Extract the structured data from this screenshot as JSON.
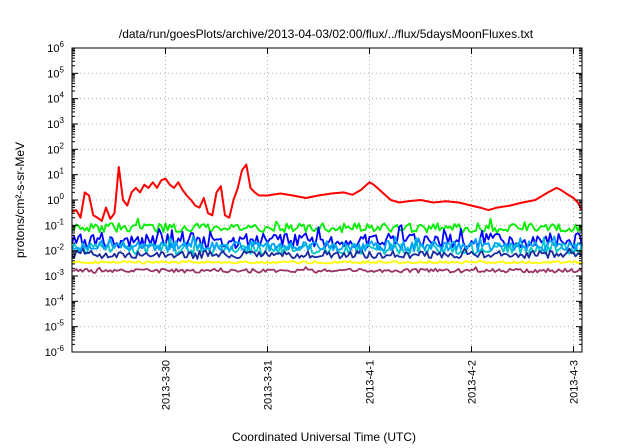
{
  "chart_data": {
    "type": "line",
    "title": "/data/run/goesPlots/archive/2013-04-03/02:00/flux/../flux/5daysMoonFluxes.txt",
    "xlabel": "Coordinated Universal Time (UTC)",
    "ylabel": "protons/cm²-s-sr-MeV",
    "y_scale": "log",
    "ylim": [
      1e-06,
      1000000.0
    ],
    "y_ticks": [
      {
        "value": 1e-06,
        "base": "10",
        "exp": "-6"
      },
      {
        "value": 1e-05,
        "base": "10",
        "exp": "-5"
      },
      {
        "value": 0.0001,
        "base": "10",
        "exp": "-4"
      },
      {
        "value": 0.001,
        "base": "10",
        "exp": "-3"
      },
      {
        "value": 0.01,
        "base": "10",
        "exp": "-2"
      },
      {
        "value": 0.1,
        "base": "10",
        "exp": "-1"
      },
      {
        "value": 1,
        "base": "10",
        "exp": "0"
      },
      {
        "value": 10,
        "base": "10",
        "exp": "1"
      },
      {
        "value": 100,
        "base": "10",
        "exp": "2"
      },
      {
        "value": 1000,
        "base": "10",
        "exp": "3"
      },
      {
        "value": 10000,
        "base": "10",
        "exp": "4"
      },
      {
        "value": 100000,
        "base": "10",
        "exp": "5"
      },
      {
        "value": 1000000,
        "base": "10",
        "exp": "6"
      }
    ],
    "xlim": [
      "2013-03-29 02:00",
      "2013-04-03 02:00"
    ],
    "x_ticks": [
      {
        "value": "2013-03-30 00:00",
        "label": "2013-3-30"
      },
      {
        "value": "2013-03-31 00:00",
        "label": "2013-3-31"
      },
      {
        "value": "2013-04-01 00:00",
        "label": "2013-4-1"
      },
      {
        "value": "2013-04-02 00:00",
        "label": "2013-4-2"
      },
      {
        "value": "2013-04-03 00:00",
        "label": "2013-4-3"
      }
    ],
    "grid": true,
    "legend": "none",
    "series": [
      {
        "color": "#ff0000",
        "points": [
          [
            "2013-03-29 02:00",
            0.35
          ],
          [
            "2013-03-29 03:00",
            0.4
          ],
          [
            "2013-03-29 04:00",
            0.2
          ],
          [
            "2013-03-29 05:00",
            2.0
          ],
          [
            "2013-03-29 06:00",
            1.5
          ],
          [
            "2013-03-29 07:00",
            0.25
          ],
          [
            "2013-03-29 08:00",
            0.2
          ],
          [
            "2013-03-29 09:00",
            0.15
          ],
          [
            "2013-03-29 10:00",
            0.5
          ],
          [
            "2013-03-29 11:00",
            0.18
          ],
          [
            "2013-03-29 12:00",
            0.3
          ],
          [
            "2013-03-29 13:00",
            20
          ],
          [
            "2013-03-29 14:00",
            1.0
          ],
          [
            "2013-03-29 15:00",
            0.6
          ],
          [
            "2013-03-29 16:00",
            2.0
          ],
          [
            "2013-03-29 17:00",
            3.0
          ],
          [
            "2013-03-29 18:00",
            2.0
          ],
          [
            "2013-03-29 19:00",
            4.0
          ],
          [
            "2013-03-29 20:00",
            3.0
          ],
          [
            "2013-03-29 21:00",
            5.0
          ],
          [
            "2013-03-29 22:00",
            3.0
          ],
          [
            "2013-03-29 23:00",
            6.0
          ],
          [
            "2013-03-30 00:00",
            7.0
          ],
          [
            "2013-03-30 01:00",
            4.0
          ],
          [
            "2013-03-30 02:00",
            3.0
          ],
          [
            "2013-03-30 03:00",
            5.0
          ],
          [
            "2013-03-30 04:00",
            2.5
          ],
          [
            "2013-03-30 05:00",
            1.5
          ],
          [
            "2013-03-30 06:00",
            1.0
          ],
          [
            "2013-03-30 07:00",
            0.6
          ],
          [
            "2013-03-30 08:00",
            0.5
          ],
          [
            "2013-03-30 09:00",
            1.2
          ],
          [
            "2013-03-30 10:00",
            0.3
          ],
          [
            "2013-03-30 11:00",
            0.25
          ],
          [
            "2013-03-30 12:00",
            2.0
          ],
          [
            "2013-03-30 13:00",
            3.5
          ],
          [
            "2013-03-30 14:00",
            0.25
          ],
          [
            "2013-03-30 15:00",
            0.2
          ],
          [
            "2013-03-30 16:00",
            1.0
          ],
          [
            "2013-03-30 17:00",
            3.0
          ],
          [
            "2013-03-30 18:00",
            15
          ],
          [
            "2013-03-30 19:00",
            25
          ],
          [
            "2013-03-30 20:00",
            3.0
          ],
          [
            "2013-03-30 21:00",
            2.0
          ],
          [
            "2013-03-30 22:00",
            1.5
          ],
          [
            "2013-03-31 00:00",
            1.5
          ],
          [
            "2013-03-31 03:00",
            1.8
          ],
          [
            "2013-03-31 06:00",
            1.5
          ],
          [
            "2013-03-31 09:00",
            1.2
          ],
          [
            "2013-03-31 12:00",
            1.5
          ],
          [
            "2013-03-31 15:00",
            1.8
          ],
          [
            "2013-03-31 18:00",
            2.0
          ],
          [
            "2013-03-31 20:00",
            1.6
          ],
          [
            "2013-03-31 22:00",
            2.5
          ],
          [
            "2013-04-01 00:00",
            5.0
          ],
          [
            "2013-04-01 01:00",
            4.0
          ],
          [
            "2013-04-01 03:00",
            2.0
          ],
          [
            "2013-04-01 05:00",
            1.0
          ],
          [
            "2013-04-01 07:00",
            0.8
          ],
          [
            "2013-04-01 09:00",
            0.9
          ],
          [
            "2013-04-01 12:00",
            1.0
          ],
          [
            "2013-04-01 15:00",
            0.8
          ],
          [
            "2013-04-01 18:00",
            0.9
          ],
          [
            "2013-04-01 21:00",
            0.8
          ],
          [
            "2013-04-02 00:00",
            0.6
          ],
          [
            "2013-04-02 02:00",
            0.5
          ],
          [
            "2013-04-02 04:00",
            0.4
          ],
          [
            "2013-04-02 06:00",
            0.5
          ],
          [
            "2013-04-02 09:00",
            0.6
          ],
          [
            "2013-04-02 12:00",
            0.8
          ],
          [
            "2013-04-02 15:00",
            1.0
          ],
          [
            "2013-04-02 18:00",
            2.0
          ],
          [
            "2013-04-02 20:00",
            3.0
          ],
          [
            "2013-04-02 21:00",
            2.5
          ],
          [
            "2013-04-02 23:00",
            1.5
          ],
          [
            "2013-04-03 00:00",
            1.2
          ],
          [
            "2013-04-03 01:00",
            0.8
          ],
          [
            "2013-04-03 02:00",
            0.4
          ]
        ]
      },
      {
        "color": "#00ee00",
        "level": 0.08,
        "spread": 0.18
      },
      {
        "color": "#0000ff",
        "level": 0.025,
        "spread": 0.3
      },
      {
        "color": "#00c8c8",
        "level": 0.012,
        "spread": 0.22
      },
      {
        "color": "#1a2a9e",
        "level": 0.007,
        "spread": 0.15
      },
      {
        "color": "#00a0ff",
        "level": 0.015,
        "spread": 0.2
      },
      {
        "color": "#ffff00",
        "level": 0.0035,
        "spread": 0.05
      },
      {
        "color": "#993366",
        "level": 0.0016,
        "spread": 0.08
      }
    ]
  }
}
